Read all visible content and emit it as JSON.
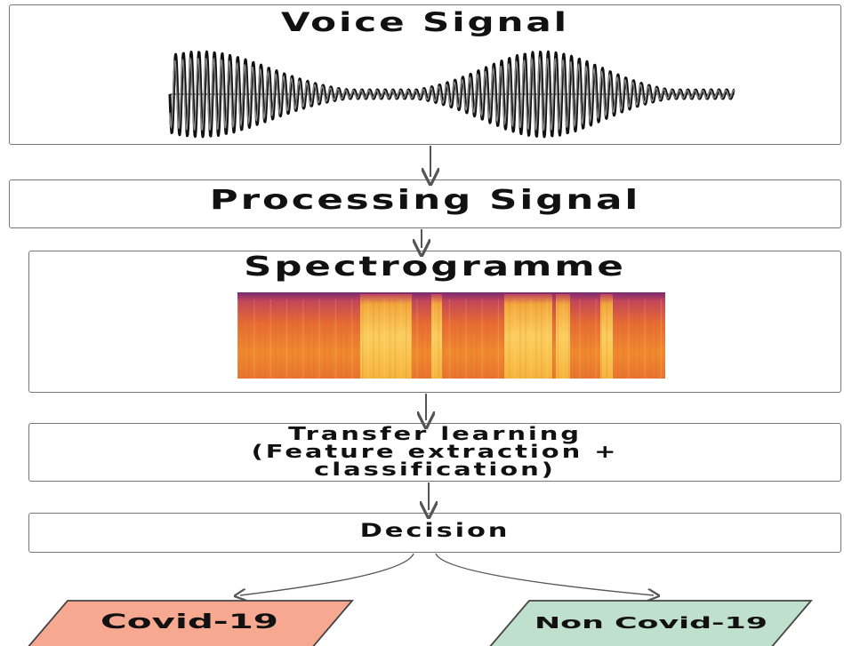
{
  "steps": {
    "voice_signal": "Voice Signal",
    "processing_signal": "Processing Signal",
    "spectrogram": "Spectrogramme",
    "transfer_line1": "Transfer learning",
    "transfer_line2": "(Feature extraction +",
    "transfer_line3": "classification)",
    "decision": "Decision"
  },
  "outcomes": {
    "covid": "Covid-19",
    "non_covid": "Non Covid-19"
  },
  "colors": {
    "covid_fill": "#f7a890",
    "non_covid_fill": "#bfe0cc",
    "border": "#777777",
    "arrow": "#555555"
  }
}
